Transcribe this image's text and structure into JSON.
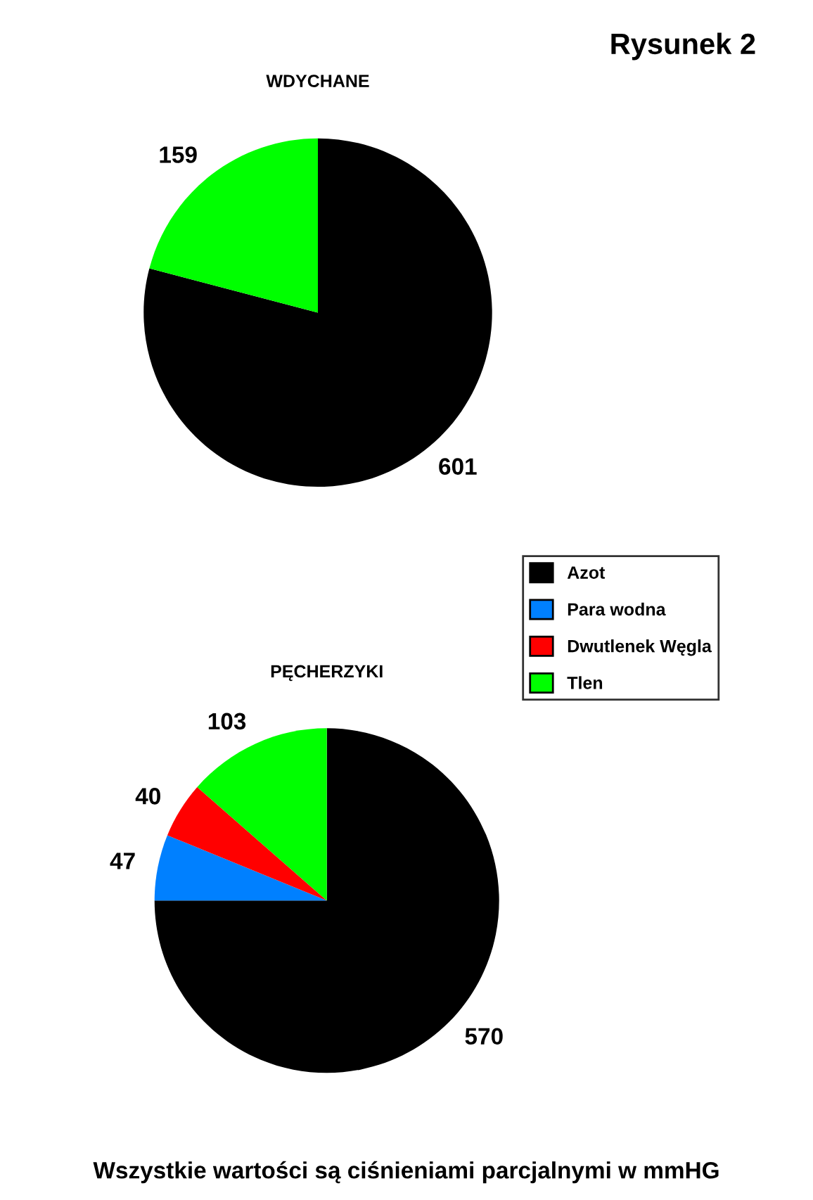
{
  "chart_data": [
    {
      "type": "pie",
      "title": "WDYCHANE",
      "categories": [
        null,
        null
      ],
      "values": [
        601,
        159
      ],
      "colors": [
        "#000000",
        "#00ff00"
      ],
      "data_labels": true,
      "annotations": [
        "Rysunek 2"
      ]
    },
    {
      "type": "pie",
      "title": "PĘCHERZYKI",
      "categories": [
        "Azot",
        "Para wodna",
        "Dwutlenek Węgla",
        "Tlen"
      ],
      "values": [
        570,
        47,
        40,
        103
      ],
      "colors": [
        "#000000",
        "#0080ff",
        "#ff0000",
        "#00ff00"
      ],
      "data_labels": true,
      "legend": "top right",
      "annotations": [
        "Wszystkie wartości są ciśnieniami parcjalnymi w mmHG"
      ]
    }
  ]
}
